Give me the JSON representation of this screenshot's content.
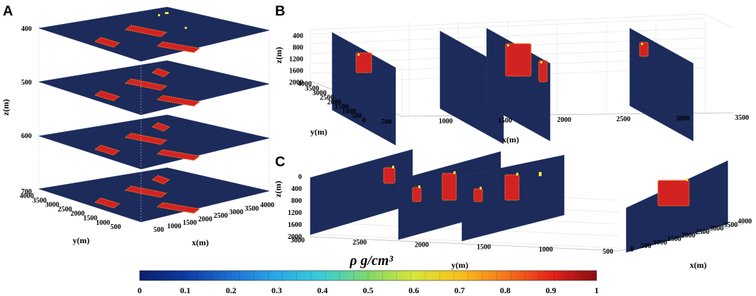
{
  "chart_data": [
    {
      "type": "heatmap",
      "panel": "A",
      "slices": [
        "400",
        "500",
        "600",
        "700"
      ],
      "zlabel": "z(m)",
      "xlabel": "x(m)",
      "ylabel": "y(m)",
      "x_ticks": [
        "500",
        "1000",
        "1500",
        "2000",
        "2500",
        "3000",
        "3500",
        "4000"
      ],
      "y_ticks": [
        "500",
        "1000",
        "1500",
        "2000",
        "2500",
        "3000",
        "3500",
        "4000"
      ]
    },
    {
      "type": "heatmap",
      "panel": "B",
      "zlabel": "z(m)",
      "xlabel": "x(m)",
      "ylabel": "y(m)",
      "z_ticks": [
        "400",
        "800",
        "1200",
        "1600",
        "2000"
      ],
      "y_ticks": [
        "0",
        "500",
        "1000",
        "1500",
        "2000",
        "2500",
        "3000",
        "3500",
        "4000"
      ],
      "x_ticks": [
        "500",
        "1000",
        "1500",
        "2000",
        "2500",
        "3000",
        "3500"
      ]
    },
    {
      "type": "heatmap",
      "panel": "C",
      "zlabel": "z(m)",
      "xlabel": "x(m)",
      "ylabel": "y(m)",
      "z_ticks": [
        "0",
        "400",
        "800",
        "1200",
        "1600",
        "2000"
      ],
      "y_ticks": [
        "3000",
        "2500",
        "2000",
        "1500",
        "1000",
        "500"
      ],
      "x_ticks": [
        "0",
        "500",
        "1000",
        "1500",
        "2000",
        "2500",
        "3000",
        "3500",
        "4000"
      ]
    }
  ],
  "colorbar": {
    "label": "ρ g/cm³",
    "min": 0,
    "max": 1,
    "ticks": [
      "0",
      "0.1",
      "0.2",
      "0.3",
      "0.4",
      "0.5",
      "0.6",
      "0.7",
      "0.8",
      "0.9",
      "1"
    ],
    "colors": [
      "#0b1f6b",
      "#0d3aa0",
      "#1d6fd0",
      "#29a8e8",
      "#38cfd5",
      "#7fd66a",
      "#d7e63a",
      "#f8c01c",
      "#f4761a",
      "#e4231a",
      "#8a0d12"
    ]
  },
  "colors": {
    "background": "#1c2b5a",
    "anomaly": "#d32222",
    "edge": "#f06a1a",
    "hot": "#f6e33a"
  }
}
